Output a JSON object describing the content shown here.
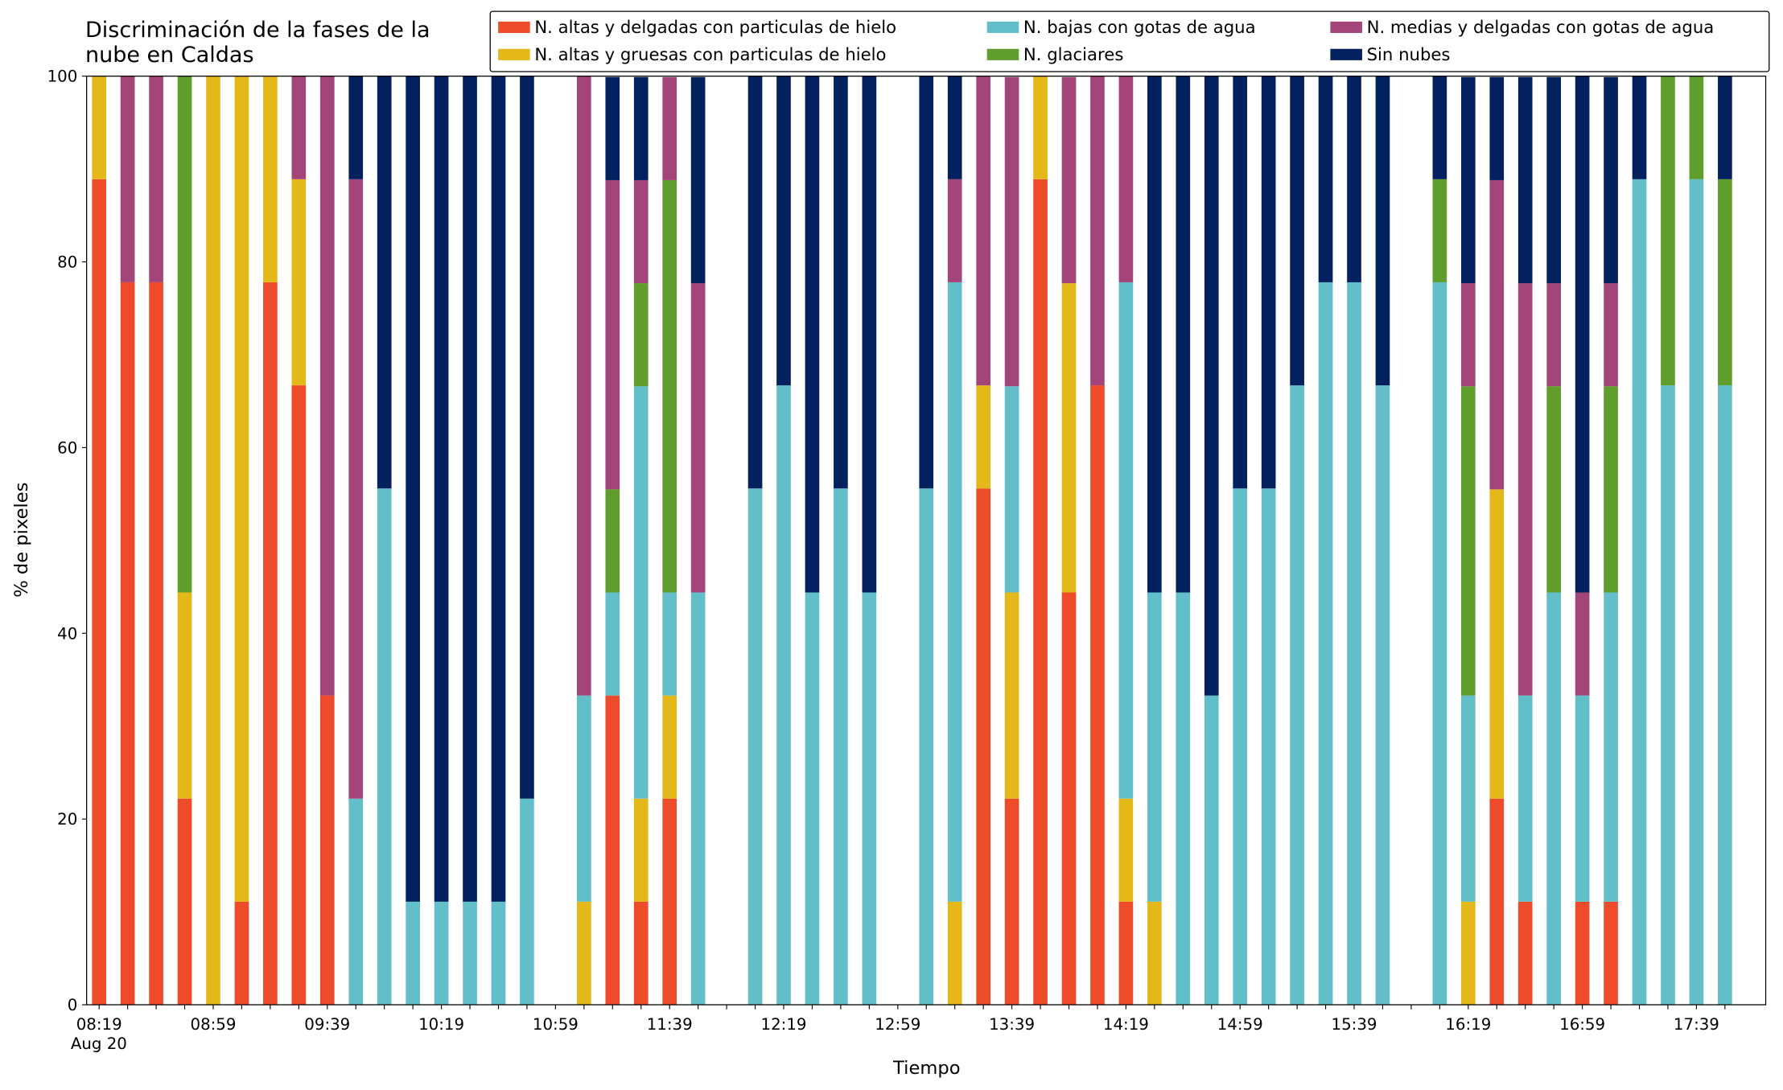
{
  "chart_data": {
    "type": "stacked_bar",
    "title": "Discriminación de la fases de la\nnube en Caldas",
    "x_label": "Tiempo",
    "y_label": "% de pixeles",
    "x_date_label": "Aug 20",
    "categories": [
      "08:19",
      null,
      null,
      null,
      "08:59",
      null,
      null,
      null,
      "09:39",
      null,
      null,
      null,
      "10:19",
      null,
      null,
      null,
      "10:59",
      null,
      null,
      null,
      "11:39",
      null,
      null,
      null,
      "12:19",
      null,
      null,
      null,
      "12:59",
      null,
      null,
      null,
      "13:39",
      null,
      null,
      null,
      "14:19",
      null,
      null,
      null,
      "14:59",
      null,
      null,
      null,
      "15:39",
      null,
      null,
      null,
      "16:19",
      null,
      null,
      null,
      "16:59",
      null,
      null,
      null,
      "17:39",
      null
    ],
    "ylim": [
      0,
      100
    ],
    "yticks": [
      0,
      20,
      40,
      60,
      80,
      100
    ],
    "legend": "top-right",
    "series": [
      {
        "name": "N. altas y delgadas con particulas de hielo",
        "color": "#ee4b2b",
        "values": [
          88.9,
          77.8,
          77.8,
          22.2,
          0,
          11.1,
          77.8,
          66.7,
          33.3,
          0,
          0,
          0,
          0,
          0,
          0,
          0,
          0,
          0,
          33.3,
          11.1,
          22.2,
          0,
          0,
          0,
          0,
          0,
          0,
          0,
          0,
          0,
          0,
          55.6,
          22.2,
          88.9,
          44.4,
          66.7,
          11.1,
          0,
          0,
          0,
          0,
          0,
          0,
          0,
          0,
          0,
          0,
          0,
          0,
          22.2,
          11.1,
          0,
          11.1,
          11.1,
          0,
          0,
          0,
          0
        ]
      },
      {
        "name": "N. altas y gruesas con particulas de hielo",
        "color": "#e5b81a",
        "values": [
          11.1,
          0,
          0,
          22.2,
          100,
          88.9,
          22.2,
          22.2,
          0,
          0,
          0,
          0,
          0,
          0,
          0,
          0,
          0,
          11.1,
          0,
          11.1,
          11.1,
          0,
          0,
          0,
          0,
          0,
          0,
          0,
          0,
          0,
          11.1,
          11.1,
          22.2,
          11.1,
          33.3,
          0,
          11.1,
          11.1,
          0,
          0,
          0,
          0,
          0,
          0,
          0,
          0,
          0,
          0,
          11.1,
          33.3,
          0,
          0,
          0,
          0,
          0,
          0,
          0,
          0
        ]
      },
      {
        "name": "N. bajas con gotas de agua",
        "color": "#62bfca",
        "values": [
          0,
          0,
          0,
          0,
          0,
          0,
          0,
          0,
          0,
          22.2,
          55.6,
          11.1,
          11.1,
          11.1,
          11.1,
          22.2,
          0,
          22.2,
          11.1,
          44.4,
          11.1,
          44.4,
          0,
          55.6,
          66.7,
          44.4,
          55.6,
          44.4,
          0,
          55.6,
          66.7,
          0,
          22.2,
          0,
          0,
          0,
          55.6,
          33.3,
          44.4,
          33.3,
          55.6,
          55.6,
          66.7,
          77.8,
          77.8,
          66.7,
          0,
          77.8,
          22.2,
          0,
          22.2,
          44.4,
          22.2,
          33.3,
          88.9,
          66.7,
          88.9,
          66.7
        ]
      },
      {
        "name": "N. glaciares",
        "color": "#5f9e2c",
        "values": [
          0,
          0,
          0,
          55.6,
          0,
          0,
          0,
          0,
          0,
          0,
          0,
          0,
          0,
          0,
          0,
          0,
          0,
          0,
          11.1,
          11.1,
          44.4,
          0,
          0,
          0,
          0,
          0,
          0,
          0,
          0,
          0,
          0,
          0,
          0,
          0,
          0,
          0,
          0,
          0,
          0,
          0,
          0,
          0,
          0,
          0,
          0,
          0,
          0,
          11.1,
          33.3,
          0,
          0,
          22.2,
          0,
          22.2,
          0,
          33.3,
          11.1,
          22.2
        ]
      },
      {
        "name": "N. medias y delgadas con gotas de agua",
        "color": "#a4457a",
        "values": [
          0,
          22.2,
          22.2,
          0,
          0,
          0,
          0,
          11.1,
          66.7,
          66.7,
          0,
          0,
          0,
          0,
          0,
          0,
          0,
          66.7,
          33.3,
          11.1,
          11.1,
          33.3,
          0,
          0,
          0,
          0,
          0,
          0,
          0,
          0,
          11.1,
          33.3,
          33.3,
          0,
          22.2,
          33.3,
          22.2,
          0,
          0,
          0,
          0,
          0,
          0,
          0,
          0,
          0,
          0,
          0,
          11.1,
          33.3,
          44.4,
          11.1,
          11.1,
          11.1,
          0,
          0,
          0,
          0
        ]
      },
      {
        "name": "Sin nubes",
        "color": "#03215f",
        "values": [
          0,
          0,
          0,
          0,
          0,
          0,
          0,
          0,
          0,
          11.1,
          44.4,
          88.9,
          88.9,
          88.9,
          88.9,
          77.8,
          0,
          0,
          11.1,
          11.1,
          0,
          22.2,
          0,
          44.4,
          33.3,
          55.6,
          44.4,
          55.6,
          0,
          44.4,
          11.1,
          0,
          0,
          0,
          0,
          0,
          0,
          55.6,
          55.6,
          66.7,
          44.4,
          44.4,
          33.3,
          22.2,
          22.2,
          33.3,
          0,
          11.1,
          22.2,
          11.1,
          22.2,
          22.2,
          55.6,
          22.2,
          11.1,
          0,
          0,
          11.1
        ]
      }
    ]
  }
}
